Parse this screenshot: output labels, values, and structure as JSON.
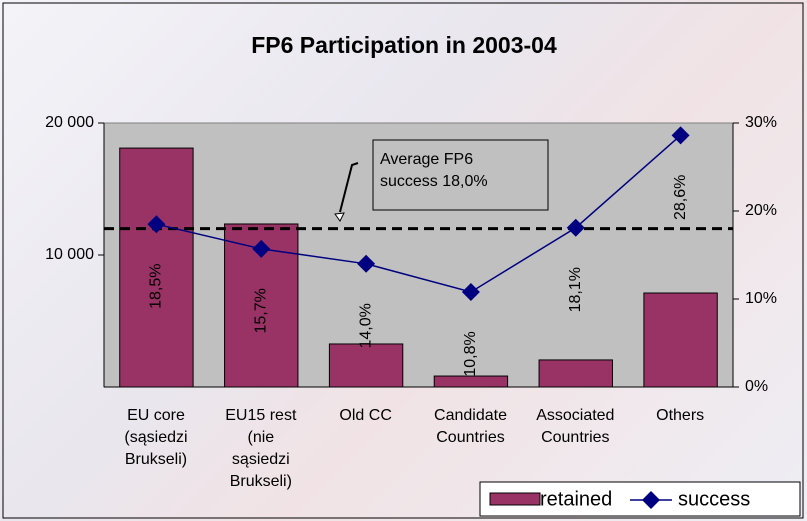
{
  "chart_data": {
    "type": "bar_line",
    "title": "FP6 Participation in 2003-04",
    "categories": [
      "EU core\n(sąsiedzi\nBrukseli)",
      "EU15 rest\n(nie\nsąsiedzi\nBrukseli)",
      "Old CC",
      "Candidate\nCountries",
      "Associated\nCountries",
      "Others"
    ],
    "series": [
      {
        "name": "retained",
        "type": "bar",
        "color": "#993366",
        "values": [
          18100,
          12350,
          3260,
          830,
          2050,
          7120
        ]
      },
      {
        "name": "success",
        "type": "line",
        "axis": "y2",
        "color": "#000080",
        "values": [
          18.5,
          15.7,
          14.0,
          10.8,
          18.1,
          28.6
        ],
        "value_labels": [
          "18,5%",
          "15,7%",
          "14,0%",
          "10,8%",
          "18,1%",
          "28,6%"
        ]
      }
    ],
    "ylim": [
      0,
      20000
    ],
    "yticks": [
      {
        "value": 10000,
        "label": "10 000"
      },
      {
        "value": 20000,
        "label": "20 000"
      }
    ],
    "y2lim": [
      0,
      30
    ],
    "y2ticks": [
      {
        "value": 0,
        "label": "0%"
      },
      {
        "value": 10,
        "label": "10%"
      },
      {
        "value": 20,
        "label": "20%"
      },
      {
        "value": 30,
        "label": "30%"
      }
    ],
    "average_line": {
      "value": 18,
      "axis": "y2",
      "label": "Average FP6\nsuccess 18,0%"
    },
    "legend": "bottom-right",
    "plot_background": "#c0c0c0"
  }
}
